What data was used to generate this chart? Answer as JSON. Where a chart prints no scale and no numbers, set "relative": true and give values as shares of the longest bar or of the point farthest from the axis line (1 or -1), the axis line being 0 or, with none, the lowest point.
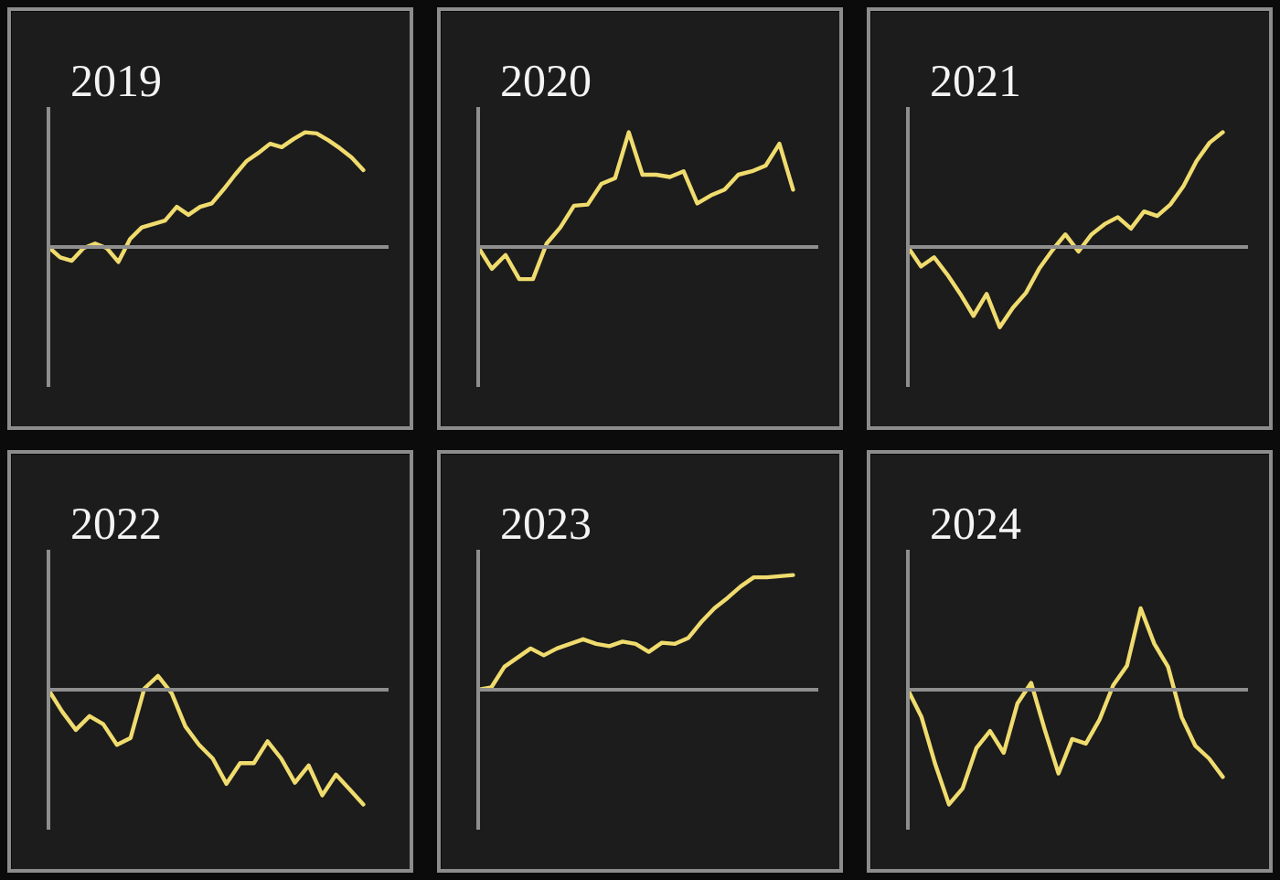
{
  "chart_data": [
    {
      "type": "line",
      "title": "2019",
      "relative": true,
      "categories": [
        null,
        null,
        null,
        null,
        null,
        null,
        null,
        null,
        null,
        null,
        null,
        null,
        null,
        null,
        null,
        null,
        null,
        null,
        null,
        null,
        null,
        null,
        null,
        null,
        null,
        null,
        null,
        null
      ],
      "series": [
        {
          "color": "#f0dc6e",
          "values": [
            0,
            -0.09,
            -0.12,
            -0.01,
            0.03,
            -0.01,
            -0.13,
            0.07,
            0.17,
            0.2,
            0.23,
            0.35,
            0.28,
            0.35,
            0.38,
            0.5,
            0.63,
            0.75,
            0.82,
            0.9,
            0.87,
            0.94,
            1.0,
            0.99,
            0.93,
            0.86,
            0.78,
            0.67
          ]
        }
      ]
    },
    {
      "type": "line",
      "title": "2020",
      "relative": true,
      "categories": [
        null,
        null,
        null,
        null,
        null,
        null,
        null,
        null,
        null,
        null,
        null,
        null,
        null,
        null,
        null,
        null,
        null,
        null,
        null,
        null,
        null,
        null,
        null,
        null
      ],
      "series": [
        {
          "color": "#f0dc6e",
          "values": [
            0,
            -0.19,
            -0.07,
            -0.28,
            -0.28,
            0.03,
            0.17,
            0.36,
            0.37,
            0.55,
            0.6,
            1.0,
            0.63,
            0.63,
            0.61,
            0.66,
            0.38,
            0.45,
            0.5,
            0.63,
            0.66,
            0.71,
            0.9,
            0.5
          ]
        }
      ]
    },
    {
      "type": "line",
      "title": "2021",
      "relative": true,
      "categories": [
        null,
        null,
        null,
        null,
        null,
        null,
        null,
        null,
        null,
        null,
        null,
        null,
        null,
        null,
        null,
        null,
        null,
        null,
        null,
        null,
        null,
        null,
        null,
        null,
        null
      ],
      "series": [
        {
          "color": "#f0dc6e",
          "values": [
            0,
            -0.17,
            -0.09,
            -0.24,
            -0.41,
            -0.6,
            -0.41,
            -0.7,
            -0.53,
            -0.4,
            -0.19,
            -0.03,
            0.11,
            -0.04,
            0.11,
            0.2,
            0.26,
            0.16,
            0.31,
            0.27,
            0.37,
            0.53,
            0.75,
            0.91,
            1.0
          ]
        }
      ]
    },
    {
      "type": "line",
      "title": "2022",
      "relative": true,
      "categories": [
        null,
        null,
        null,
        null,
        null,
        null,
        null,
        null,
        null,
        null,
        null,
        null,
        null,
        null,
        null,
        null,
        null,
        null,
        null,
        null,
        null,
        null,
        null,
        null
      ],
      "series": [
        {
          "color": "#f0dc6e",
          "values": [
            0,
            -0.19,
            -0.35,
            -0.23,
            -0.3,
            -0.48,
            -0.42,
            0.01,
            0.12,
            -0.03,
            -0.32,
            -0.48,
            -0.6,
            -0.82,
            -0.64,
            -0.64,
            -0.45,
            -0.6,
            -0.81,
            -0.66,
            -0.92,
            -0.74,
            -0.87,
            -1.0
          ]
        }
      ]
    },
    {
      "type": "line",
      "title": "2023",
      "relative": true,
      "categories": [
        null,
        null,
        null,
        null,
        null,
        null,
        null,
        null,
        null,
        null,
        null,
        null,
        null,
        null,
        null,
        null,
        null,
        null,
        null,
        null,
        null,
        null,
        null,
        null,
        null
      ],
      "series": [
        {
          "color": "#f0dc6e",
          "values": [
            0,
            0.02,
            0.2,
            0.28,
            0.36,
            0.3,
            0.36,
            0.4,
            0.44,
            0.4,
            0.38,
            0.42,
            0.4,
            0.33,
            0.41,
            0.4,
            0.45,
            0.59,
            0.71,
            0.8,
            0.9,
            0.98,
            0.98,
            0.99,
            1.0
          ]
        }
      ]
    },
    {
      "type": "line",
      "title": "2024",
      "relative": true,
      "categories": [
        null,
        null,
        null,
        null,
        null,
        null,
        null,
        null,
        null,
        null,
        null,
        null,
        null,
        null,
        null,
        null,
        null,
        null,
        null,
        null,
        null,
        null,
        null,
        null
      ],
      "series": [
        {
          "color": "#f0dc6e",
          "values": [
            0,
            -0.24,
            -0.65,
            -1.0,
            -0.86,
            -0.51,
            -0.36,
            -0.55,
            -0.12,
            0.06,
            -0.35,
            -0.73,
            -0.43,
            -0.47,
            -0.26,
            0.04,
            0.21,
            0.71,
            0.4,
            0.2,
            -0.24,
            -0.49,
            -0.6,
            -0.76
          ]
        }
      ]
    }
  ]
}
